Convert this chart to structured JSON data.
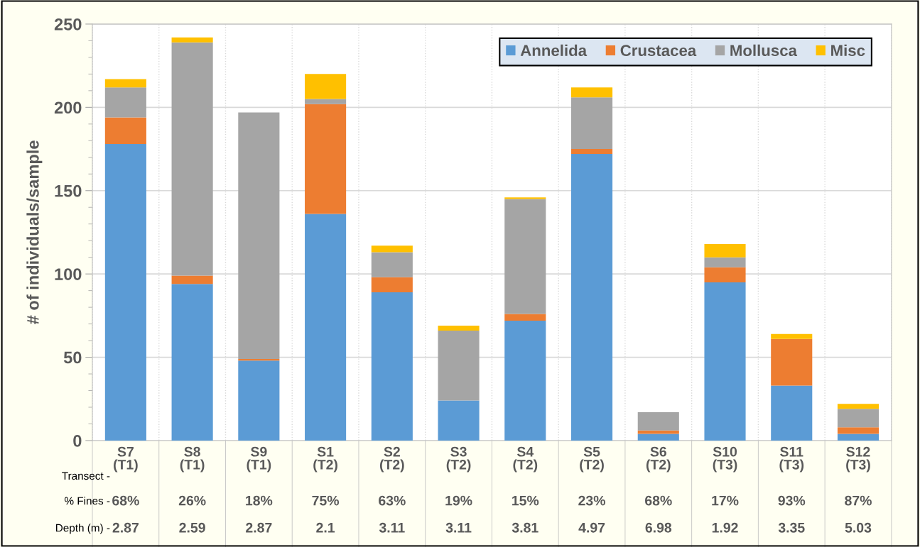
{
  "chart_data": {
    "type": "bar",
    "stacked": true,
    "ylabel": "# of individuals/sample",
    "categories": [
      "S7\n(T1)",
      "S8\n(T1)",
      "S9\n(T1)",
      "S1\n(T2)",
      "S2\n(T2)",
      "S3\n(T2)",
      "S4\n(T2)",
      "S5\n(T2)",
      "S6\n(T2)",
      "S10\n(T3)",
      "S11\n(T3)",
      "S12\n(T3)"
    ],
    "series": [
      {
        "name": "Annelida",
        "color": "#5b9bd5",
        "values": [
          178,
          94,
          48,
          136,
          89,
          24,
          72,
          172,
          4,
          95,
          33,
          4
        ]
      },
      {
        "name": "Crustacea",
        "color": "#ed7d31",
        "values": [
          16,
          5,
          1,
          66,
          9,
          0,
          4,
          3,
          2,
          9,
          28,
          4
        ]
      },
      {
        "name": "Mollusca",
        "color": "#a5a5a5",
        "values": [
          18,
          140,
          148,
          3,
          15,
          42,
          69,
          31,
          11,
          6,
          0,
          11
        ]
      },
      {
        "name": "Misc",
        "color": "#ffc000",
        "values": [
          5,
          3,
          0,
          15,
          4,
          3,
          1,
          6,
          0,
          8,
          3,
          3
        ]
      }
    ],
    "ylim": [
      0,
      250
    ],
    "yticks": [
      0,
      50,
      100,
      150,
      200,
      250
    ],
    "grid": "y",
    "legend": "top right",
    "annotations": [
      "Transect -",
      "% Fines -",
      "Depth (m) -",
      "68%",
      "26%",
      "18%",
      "75%",
      "63%",
      "19%",
      "15%",
      "23%",
      "68%",
      "17%",
      "93%",
      "87%",
      "2.87",
      "2.59",
      "2.87",
      "2.1",
      "3.11",
      "3.11",
      "3.81",
      "4.97",
      "6.98",
      "1.92",
      "3.35",
      "5.03"
    ]
  }
}
